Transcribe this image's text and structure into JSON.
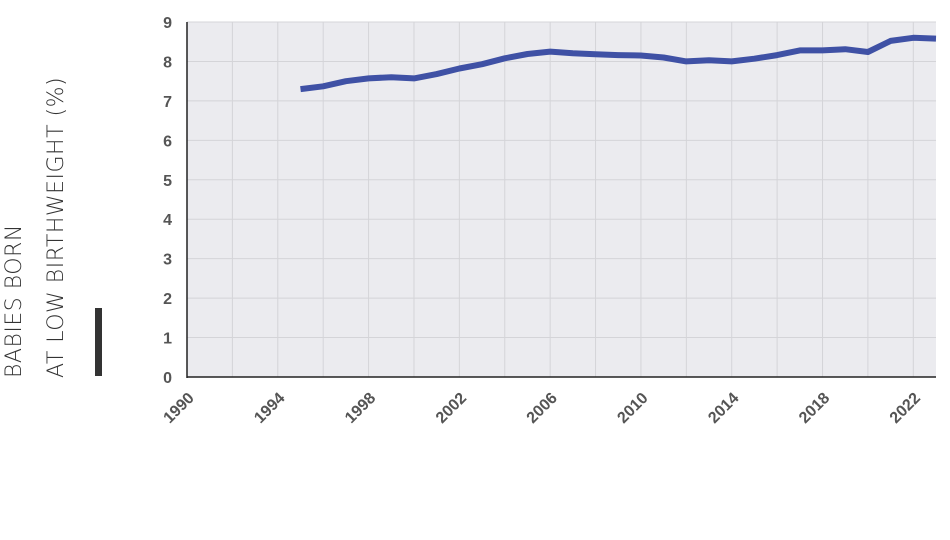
{
  "chart_data": {
    "type": "line",
    "title": "",
    "ylabel_lines": [
      "BABIES BORN",
      "AT LOW BIRTHWEIGHT (%)"
    ],
    "xlabel": "",
    "xlim": [
      1990,
      2023
    ],
    "ylim": [
      0,
      9
    ],
    "x_ticks": [
      1990,
      1994,
      1998,
      2002,
      2006,
      2010,
      2014,
      2018,
      2022
    ],
    "y_ticks": [
      0,
      1,
      2,
      3,
      4,
      5,
      6,
      7,
      8,
      9
    ],
    "grid": true,
    "legend": "none",
    "colors": {
      "line": "#3f51a5",
      "plot_bg": "#ebebef",
      "grid": "#d4d4d8",
      "axis": "#222222",
      "tick_label": "#555555",
      "accent_bar": "#333333"
    },
    "series": [
      {
        "x": [
          1995,
          1996,
          1997,
          1998,
          1999,
          2000,
          2001,
          2002,
          2003,
          2004,
          2005,
          2006,
          2007,
          2008,
          2009,
          2010,
          2011,
          2012,
          2013,
          2014,
          2015,
          2016,
          2017,
          2018,
          2019,
          2020,
          2021,
          2022,
          2023
        ],
        "values": [
          7.3,
          7.37,
          7.5,
          7.57,
          7.6,
          7.57,
          7.68,
          7.82,
          7.93,
          8.08,
          8.19,
          8.25,
          8.21,
          8.18,
          8.16,
          8.15,
          8.1,
          8.0,
          8.03,
          8.0,
          8.07,
          8.16,
          8.28,
          8.28,
          8.31,
          8.24,
          8.52,
          8.6,
          8.58
        ]
      }
    ]
  }
}
